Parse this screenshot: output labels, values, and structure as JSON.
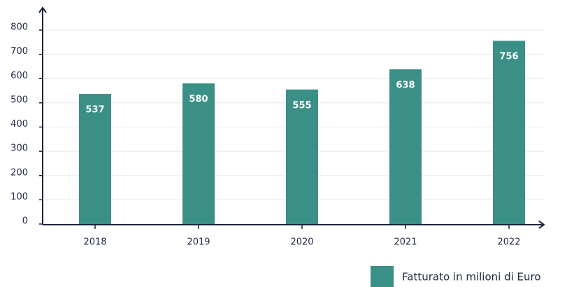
{
  "chart_data": {
    "type": "bar",
    "categories": [
      "2018",
      "2019",
      "2020",
      "2021",
      "2022"
    ],
    "series": [
      {
        "name": "Fatturato in milioni di Euro",
        "color": "#3a8f87",
        "values": [
          537,
          580,
          555,
          638,
          756
        ]
      }
    ],
    "ylim": [
      0,
      800
    ],
    "yticks": [
      0,
      100,
      200,
      300,
      400,
      500,
      600,
      700,
      800
    ],
    "grid": true,
    "legend": "bottom-right"
  }
}
